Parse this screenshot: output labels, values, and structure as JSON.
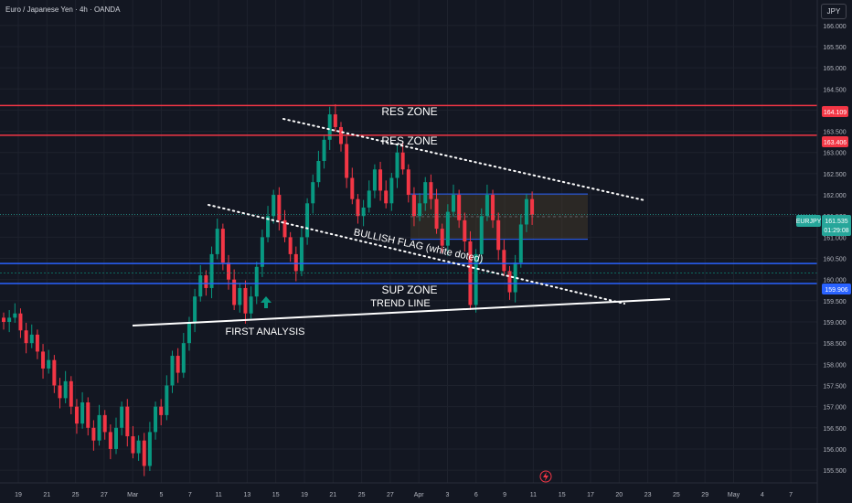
{
  "symbol_title": "Euro / Japanese Yen · 4h · OANDA",
  "currency_button": "JPY",
  "colors": {
    "background": "#131722",
    "grid": "#1e222d",
    "up": "#089981",
    "down": "#f23645",
    "res_line": "#f23645",
    "sup_line": "#2962ff",
    "trend_line": "#ffffff",
    "price_label": "#26a69a",
    "arrow": "#089981",
    "box_fill": "#4a3f2a"
  },
  "chart_data": {
    "type": "candlestick",
    "instrument": "EURJPY",
    "timeframe": "4h",
    "ylim": [
      155.2,
      166.6
    ],
    "y_ticks": [
      "166.000",
      "165.500",
      "165.000",
      "164.500",
      "164.000",
      "163.500",
      "163.000",
      "162.500",
      "162.000",
      "161.500",
      "161.000",
      "160.500",
      "160.000",
      "159.500",
      "159.000",
      "158.500",
      "158.000",
      "157.500",
      "157.000",
      "156.500",
      "156.000",
      "155.500"
    ],
    "x_ticks": [
      "19",
      "21",
      "25",
      "27",
      "Mar",
      "5",
      "7",
      "11",
      "13",
      "15",
      "19",
      "21",
      "25",
      "27",
      "Apr",
      "3",
      "6",
      "9",
      "11",
      "15",
      "17",
      "20",
      "23",
      "25",
      "29",
      "May",
      "4",
      "7"
    ],
    "closes": [
      159.0,
      159.1,
      159.2,
      158.8,
      158.5,
      158.7,
      158.3,
      157.9,
      158.1,
      157.5,
      157.2,
      157.6,
      157.0,
      156.6,
      157.1,
      156.5,
      156.2,
      156.8,
      156.4,
      156.0,
      156.5,
      157.0,
      156.3,
      155.9,
      156.2,
      155.6,
      156.4,
      157.0,
      156.8,
      157.5,
      158.2,
      157.8,
      158.5,
      159.0,
      159.6,
      160.1,
      159.8,
      160.6,
      161.2,
      160.4,
      160.0,
      159.4,
      159.8,
      159.2,
      159.6,
      160.3,
      161.0,
      161.5,
      162.0,
      161.4,
      161.0,
      160.6,
      160.2,
      161.0,
      161.8,
      162.3,
      162.8,
      163.3,
      163.9,
      163.6,
      163.2,
      162.4,
      161.9,
      161.5,
      161.7,
      162.1,
      162.6,
      162.1,
      161.8,
      162.4,
      163.0,
      162.6,
      162.0,
      161.5,
      161.8,
      162.3,
      161.9,
      161.2,
      160.8,
      161.6,
      162.0,
      161.4,
      160.9,
      159.4,
      160.6,
      161.5,
      162.0,
      161.4,
      160.7,
      160.2,
      159.7,
      160.4,
      161.3,
      161.9,
      161.53
    ],
    "current_price": "161.535",
    "countdown": "01:29:08",
    "levels": [
      {
        "name": "RES ZONE",
        "price": 164.109,
        "label": "164.109"
      },
      {
        "name": "RES ZONE",
        "price": 163.406,
        "label": "163.406"
      },
      {
        "name": "support upper",
        "price": 160.38,
        "label": ""
      },
      {
        "name": "support",
        "price": 159.906,
        "label": "159.906"
      }
    ],
    "range_box": {
      "top": 162.02,
      "bottom": 160.95
    }
  },
  "annotations": {
    "res_zone_1": "RES ZONE",
    "res_zone_2": "RES ZONE",
    "sup_zone": "SUP ZONE",
    "trend_line": "TREND LINE",
    "first_analysis": "FIRST ANALYSIS",
    "bullish_flag": "BULLISH FLAG (white doted)"
  },
  "price_axis_labels": {
    "res1": "164.109",
    "res2": "163.406",
    "symbol": "EURJPY",
    "current": "161.535",
    "countdown": "01:29:08",
    "sup": "159.906"
  },
  "icons": {
    "flash": "lightning-icon"
  }
}
